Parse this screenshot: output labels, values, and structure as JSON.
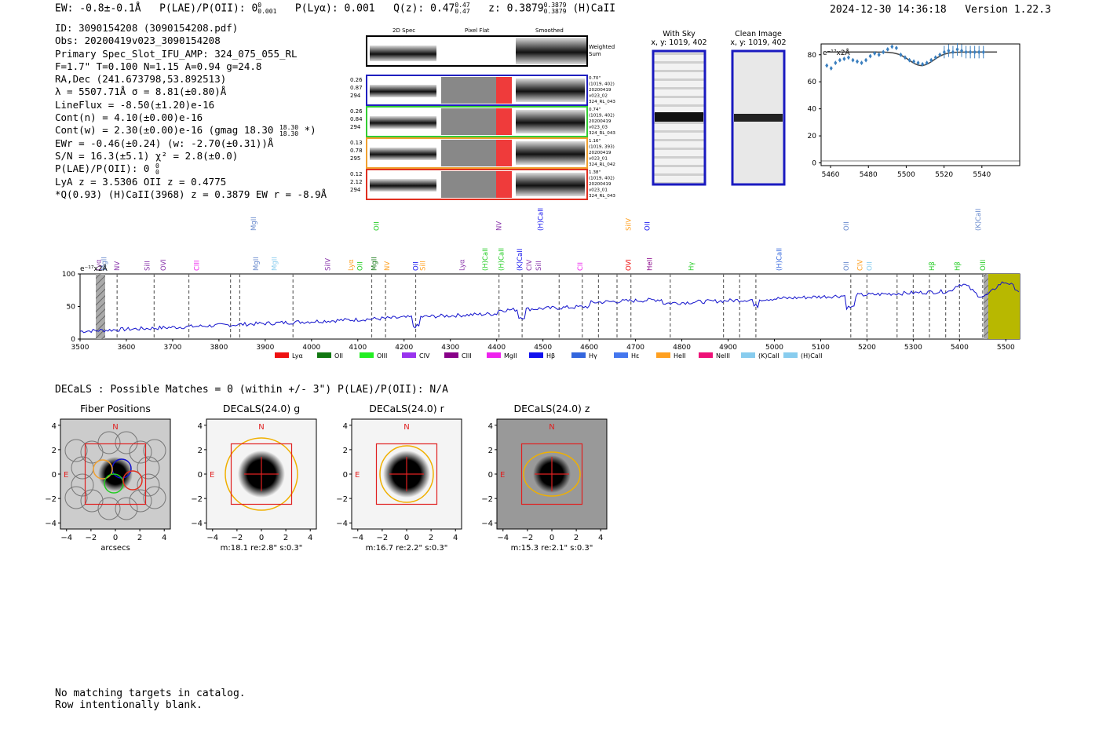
{
  "header": {
    "ew": "EW: -0.8±-0.1Å",
    "plae_label": "P(LAE)/P(OII): 0",
    "plae_sup": "0",
    "plae_sub": "0.001",
    "plya": "P(Lyα): 0.001",
    "qz_label": "Q(z): 0.47",
    "qz_sup": "0.47",
    "qz_sub": "0.47",
    "z_label": "z: 0.3879",
    "z_sup": "0.3879",
    "z_sub": "0.3879",
    "z_line": "(H)CaII",
    "timestamp": "2024-12-30 14:36:18",
    "version": "Version 1.22.3"
  },
  "info": {
    "id": "ID: 3090154208 (3090154208.pdf)",
    "obs": "Obs: 20200419v023_3090154208",
    "primary": "Primary Spec_Slot_IFU_AMP: 324_075_055_RL",
    "params": "F=1.7\"  T=0.100  N=1.15  A=0.94  g=24.8",
    "radec": "RA,Dec (241.673798,53.892513)",
    "lambda": "λ = 5507.71Å  σ = 8.81(±0.80)Å",
    "lineflux": "LineFlux = -8.50(±1.20)e-16",
    "contn": "Cont(n) = 4.10(±0.00)e-16",
    "contw": "Cont(w) = 2.30(±0.00)e-16 (gmag 18.30",
    "contw_sup": "18.30",
    "contw_sub": "18.30",
    "contw_end": "*)",
    "ewr": "EWr = -0.46(±0.24) (w: -2.70(±0.31))Å",
    "sn": "S/N = 16.3(±5.1)  χ² = 2.8(±0.0)",
    "plae": "P(LAE)/P(OII): 0",
    "plae_sup": "0",
    "plae_sub": "0",
    "lya_oii": "LyA z = 3.5306  OII z = 0.4775",
    "q_line": "*Q(0.93) (H)CaII(3968) z = 0.3879  EW r = -8.9Å"
  },
  "cutouts": {
    "col_headers": [
      "2D Spec",
      "Pixel Flat",
      "Smoothed"
    ],
    "weighted_label": [
      "Weighted",
      "Sum"
    ],
    "rows": [
      {
        "left": [
          "0.26",
          "0.87",
          "294"
        ],
        "right": [
          "0.70\"",
          "(1019, 402)",
          "20200419",
          "v023_02",
          "324_RL_043"
        ],
        "color": "#1f1fbf"
      },
      {
        "left": [
          "0.26",
          "0.84",
          "294"
        ],
        "right": [
          "0.74\"",
          "(1019, 402)",
          "20200419",
          "v023_03",
          "324_RL_043"
        ],
        "color": "#33cc33"
      },
      {
        "left": [
          "0.13",
          "0.78",
          "295"
        ],
        "right": [
          "1.16\"",
          "(1019, 393)",
          "20200419",
          "v023_01",
          "324_RL_042"
        ],
        "color": "#f0a030"
      },
      {
        "left": [
          "0.12",
          "2.12",
          "294"
        ],
        "right": [
          "1.38\"",
          "(1019, 402)",
          "20200419",
          "v023_01",
          "324_RL_043"
        ],
        "color": "#e03020"
      }
    ],
    "with_sky": [
      "With Sky",
      "x, y: 1019, 402"
    ],
    "clean": [
      "Clean Image",
      "x, y: 1019, 402"
    ]
  },
  "zoom_plot": {
    "ylabel": "e⁻¹⁷x2Å",
    "xticks": [
      "5460",
      "5480",
      "5500",
      "5520",
      "5540"
    ],
    "yticks": [
      "0",
      "20",
      "40",
      "60",
      "80"
    ]
  },
  "spectrum": {
    "ylabel": "e⁻¹⁷x2Å",
    "yticks": [
      "0",
      "50",
      "100"
    ],
    "xticks": [
      "3500",
      "3600",
      "3700",
      "3800",
      "3900",
      "4000",
      "4100",
      "4200",
      "4300",
      "4400",
      "4500",
      "4600",
      "4700",
      "4800",
      "4900",
      "5000",
      "5100",
      "5200",
      "5300",
      "5400",
      "5500"
    ],
    "legend": [
      {
        "label": "Lyα",
        "color": "#ee1111"
      },
      {
        "label": "OII",
        "color": "#117711"
      },
      {
        "label": "OIII",
        "color": "#22ee22"
      },
      {
        "label": "CIV",
        "color": "#9933ee"
      },
      {
        "label": "CIII",
        "color": "#880088"
      },
      {
        "label": "MgII",
        "color": "#ee22ee"
      },
      {
        "label": "Hβ",
        "color": "#1111ee"
      },
      {
        "label": "Hγ",
        "color": "#3366dd"
      },
      {
        "label": "Hε",
        "color": "#4477ee"
      },
      {
        "label": "HeII",
        "color": "#ffa020"
      },
      {
        "label": "NeIII",
        "color": "#ee1177"
      },
      {
        "label": "(K)CaII",
        "color": "#88ccee"
      },
      {
        "label": "(H)CaII",
        "color": "#88ccee"
      }
    ],
    "lines_lower": [
      {
        "t": "Lyα",
        "x": 3540,
        "c": "#8833aa"
      },
      {
        "t": "MgII",
        "x": 3552,
        "c": "#6688cc"
      },
      {
        "t": "NV",
        "x": 3580,
        "c": "#8833aa"
      },
      {
        "t": "SiII",
        "x": 3645,
        "c": "#8833aa"
      },
      {
        "t": "OVI",
        "x": 3680,
        "c": "#8833aa"
      },
      {
        "t": "CIII",
        "x": 3752,
        "c": "#ee22ee"
      },
      {
        "t": "MgII",
        "x": 3880,
        "c": "#6688cc"
      },
      {
        "t": "MgII",
        "x": 3920,
        "c": "#88ccee"
      },
      {
        "t": "SiIV",
        "x": 4035,
        "c": "#8833aa"
      },
      {
        "t": "Lyα",
        "x": 4085,
        "c": "#ffa020"
      },
      {
        "t": "OII",
        "x": 4105,
        "c": "#22cc22"
      },
      {
        "t": "MgII",
        "x": 4135,
        "c": "#117711"
      },
      {
        "t": "NV",
        "x": 4163,
        "c": "#ffa020"
      },
      {
        "t": "OII",
        "x": 4225,
        "c": "#1111ee"
      },
      {
        "t": "SiII",
        "x": 4240,
        "c": "#ffa020"
      },
      {
        "t": "Lyα",
        "x": 4325,
        "c": "#8833aa"
      },
      {
        "t": "(H)CaII",
        "x": 4375,
        "c": "#22cc22"
      },
      {
        "t": "(H)CaII",
        "x": 4410,
        "c": "#22cc22"
      },
      {
        "t": "(K)CaII",
        "x": 4450,
        "c": "#1111ee"
      },
      {
        "t": "CIV",
        "x": 4470,
        "c": "#8833aa"
      },
      {
        "t": "SiII",
        "x": 4490,
        "c": "#8833aa"
      },
      {
        "t": "CII",
        "x": 4580,
        "c": "#ee22ee"
      },
      {
        "t": "OVI",
        "x": 4685,
        "c": "#ee1111"
      },
      {
        "t": "HeII",
        "x": 4730,
        "c": "#880088"
      },
      {
        "t": "Hγ",
        "x": 4820,
        "c": "#22cc22"
      },
      {
        "t": "(H)CaII",
        "x": 5010,
        "c": "#3366dd"
      },
      {
        "t": "OII",
        "x": 5155,
        "c": "#6688cc"
      },
      {
        "t": "CIV",
        "x": 5185,
        "c": "#ffa020"
      },
      {
        "t": "OII",
        "x": 5205,
        "c": "#88ccee"
      },
      {
        "t": "Hβ",
        "x": 5340,
        "c": "#22cc22"
      },
      {
        "t": "Hβ",
        "x": 5395,
        "c": "#22cc22"
      },
      {
        "t": "OIII",
        "x": 5450,
        "c": "#22cc22"
      }
    ],
    "lines_upper": [
      {
        "t": "MgII",
        "x": 3875,
        "c": "#6688cc"
      },
      {
        "t": "OII",
        "x": 4140,
        "c": "#22cc22"
      },
      {
        "t": "NV",
        "x": 4405,
        "c": "#8833aa"
      },
      {
        "t": "(H)CaII",
        "x": 4495,
        "c": "#1111ee"
      },
      {
        "t": "SiIV",
        "x": 4685,
        "c": "#ffa020"
      },
      {
        "t": "OII",
        "x": 4725,
        "c": "#1111ee"
      },
      {
        "t": "OII",
        "x": 5155,
        "c": "#6688cc"
      },
      {
        "t": "(K)CaII",
        "x": 5440,
        "c": "#6688cc"
      }
    ]
  },
  "decals": {
    "summary": "DECaLS : Possible Matches = 0 (within +/- 3\")  P(LAE)/P(OII): N/A",
    "panels": [
      {
        "title": "Fiber Positions",
        "xlabel": "arcsecs",
        "caption": ""
      },
      {
        "title": "DECaLS(24.0) g",
        "xlabel": "",
        "caption": "m:18.1  re:2.8\"  s:0.3\""
      },
      {
        "title": "DECaLS(24.0) r",
        "xlabel": "",
        "caption": "m:16.7  re:2.2\"  s:0.3\""
      },
      {
        "title": "DECaLS(24.0) z",
        "xlabel": "",
        "caption": "m:15.3  re:2.1\"  s:0.3\""
      }
    ],
    "ticks": [
      "−4",
      "−2",
      "0",
      "2",
      "4"
    ],
    "compass_n": "N",
    "compass_e": "E"
  },
  "footer": {
    "line1": "No matching targets in catalog.",
    "line2": "Row intentionally blank."
  }
}
